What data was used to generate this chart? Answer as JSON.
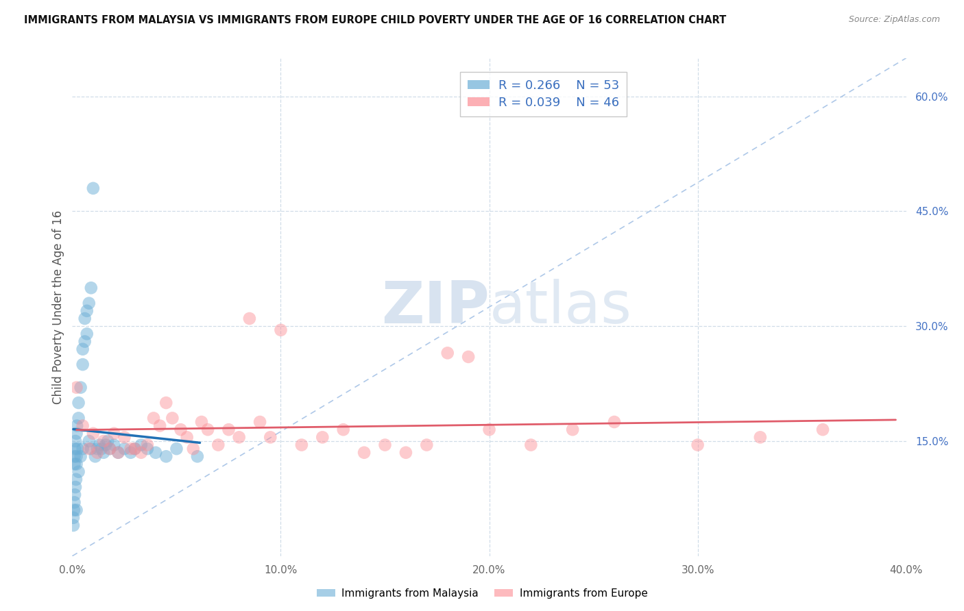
{
  "title": "IMMIGRANTS FROM MALAYSIA VS IMMIGRANTS FROM EUROPE CHILD POVERTY UNDER THE AGE OF 16 CORRELATION CHART",
  "source": "Source: ZipAtlas.com",
  "ylabel": "Child Poverty Under the Age of 16",
  "xlim": [
    0,
    0.4
  ],
  "ylim": [
    0,
    0.65
  ],
  "xticks": [
    0.0,
    0.1,
    0.2,
    0.3,
    0.4
  ],
  "xticklabels": [
    "0.0%",
    "10.0%",
    "20.0%",
    "30.0%",
    "40.0%"
  ],
  "yticks_right": [
    0.15,
    0.3,
    0.45,
    0.6
  ],
  "ytick_right_labels": [
    "15.0%",
    "30.0%",
    "45.0%",
    "60.0%"
  ],
  "malaysia_R": 0.266,
  "malaysia_N": 53,
  "europe_R": 0.039,
  "europe_N": 46,
  "malaysia_color": "#6baed6",
  "europe_color": "#fc8d94",
  "malaysia_line_color": "#2171b5",
  "europe_line_color": "#e05c6a",
  "ref_line_color": "#aec8e8",
  "background_color": "#ffffff",
  "grid_color": "#d0dde8",
  "malaysia_x": [
    0.0005,
    0.0005,
    0.0008,
    0.001,
    0.001,
    0.001,
    0.0012,
    0.0012,
    0.0015,
    0.0015,
    0.0018,
    0.002,
    0.002,
    0.002,
    0.002,
    0.0022,
    0.0025,
    0.003,
    0.003,
    0.003,
    0.004,
    0.004,
    0.005,
    0.005,
    0.005,
    0.006,
    0.006,
    0.007,
    0.007,
    0.008,
    0.008,
    0.009,
    0.009,
    0.01,
    0.011,
    0.012,
    0.013,
    0.014,
    0.015,
    0.016,
    0.017,
    0.018,
    0.02,
    0.022,
    0.025,
    0.028,
    0.03,
    0.033,
    0.036,
    0.04,
    0.045,
    0.05,
    0.06
  ],
  "malaysia_y": [
    0.05,
    0.04,
    0.06,
    0.13,
    0.12,
    0.07,
    0.14,
    0.08,
    0.15,
    0.09,
    0.1,
    0.16,
    0.13,
    0.12,
    0.06,
    0.17,
    0.14,
    0.2,
    0.18,
    0.11,
    0.22,
    0.13,
    0.27,
    0.25,
    0.14,
    0.31,
    0.28,
    0.32,
    0.29,
    0.33,
    0.15,
    0.35,
    0.14,
    0.48,
    0.13,
    0.14,
    0.145,
    0.14,
    0.135,
    0.145,
    0.15,
    0.14,
    0.145,
    0.135,
    0.14,
    0.135,
    0.14,
    0.145,
    0.14,
    0.135,
    0.13,
    0.14,
    0.13
  ],
  "europe_x": [
    0.002,
    0.005,
    0.008,
    0.01,
    0.012,
    0.015,
    0.018,
    0.02,
    0.022,
    0.025,
    0.028,
    0.03,
    0.033,
    0.036,
    0.039,
    0.042,
    0.045,
    0.048,
    0.052,
    0.055,
    0.058,
    0.062,
    0.065,
    0.07,
    0.075,
    0.08,
    0.085,
    0.09,
    0.095,
    0.1,
    0.11,
    0.12,
    0.13,
    0.14,
    0.15,
    0.16,
    0.17,
    0.18,
    0.19,
    0.2,
    0.22,
    0.24,
    0.26,
    0.3,
    0.33,
    0.36
  ],
  "europe_y": [
    0.22,
    0.17,
    0.14,
    0.16,
    0.135,
    0.15,
    0.14,
    0.16,
    0.135,
    0.155,
    0.14,
    0.14,
    0.135,
    0.145,
    0.18,
    0.17,
    0.2,
    0.18,
    0.165,
    0.155,
    0.14,
    0.175,
    0.165,
    0.145,
    0.165,
    0.155,
    0.31,
    0.175,
    0.155,
    0.295,
    0.145,
    0.155,
    0.165,
    0.135,
    0.145,
    0.135,
    0.145,
    0.265,
    0.26,
    0.165,
    0.145,
    0.165,
    0.175,
    0.145,
    0.155,
    0.165
  ]
}
